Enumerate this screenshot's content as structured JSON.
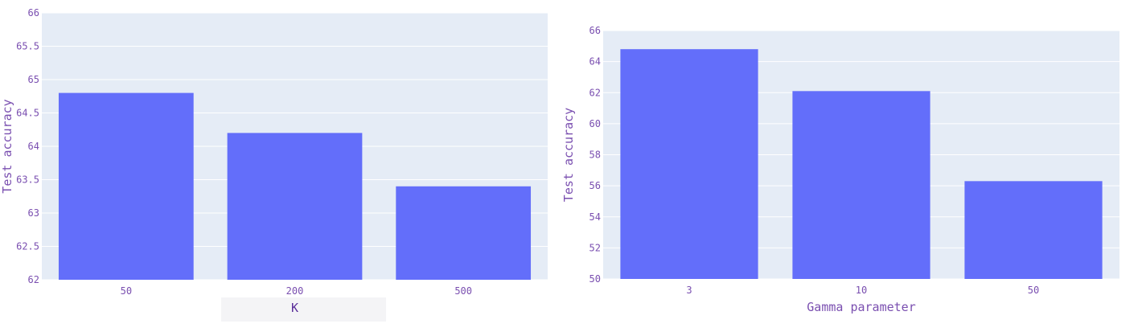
{
  "chart_data": [
    {
      "type": "bar",
      "categories": [
        "50",
        "200",
        "500"
      ],
      "values": [
        64.8,
        64.2,
        63.4
      ],
      "title": "",
      "xlabel": "K",
      "ylabel": "Test accuracy",
      "ylim": [
        62,
        66
      ],
      "yticks": [
        "62",
        "62.5",
        "63",
        "63.5",
        "64",
        "64.5",
        "65",
        "65.5",
        "66"
      ],
      "ytick_values": [
        62,
        62.5,
        63,
        63.5,
        64,
        64.5,
        65,
        65.5,
        66
      ],
      "grid": true,
      "colors": {
        "bar": "#636efa",
        "plot_bg": "#e5ecf6",
        "grid": "#ffffff",
        "text": "#7a4fb0",
        "xlabel_text": "#5a2f9a"
      }
    },
    {
      "type": "bar",
      "categories": [
        "3",
        "10",
        "50"
      ],
      "values": [
        64.8,
        62.1,
        56.3
      ],
      "title": "",
      "xlabel": "Gamma parameter",
      "ylabel": "Test accuracy",
      "ylim": [
        50,
        66
      ],
      "yticks": [
        "50",
        "52",
        "54",
        "56",
        "58",
        "60",
        "62",
        "64",
        "66"
      ],
      "ytick_values": [
        50,
        52,
        54,
        56,
        58,
        60,
        62,
        64,
        66
      ],
      "grid": true,
      "colors": {
        "bar": "#636efa",
        "plot_bg": "#e5ecf6",
        "grid": "#ffffff",
        "text": "#7a4fb0",
        "xlabel_text": "#7a4fb0"
      }
    }
  ]
}
